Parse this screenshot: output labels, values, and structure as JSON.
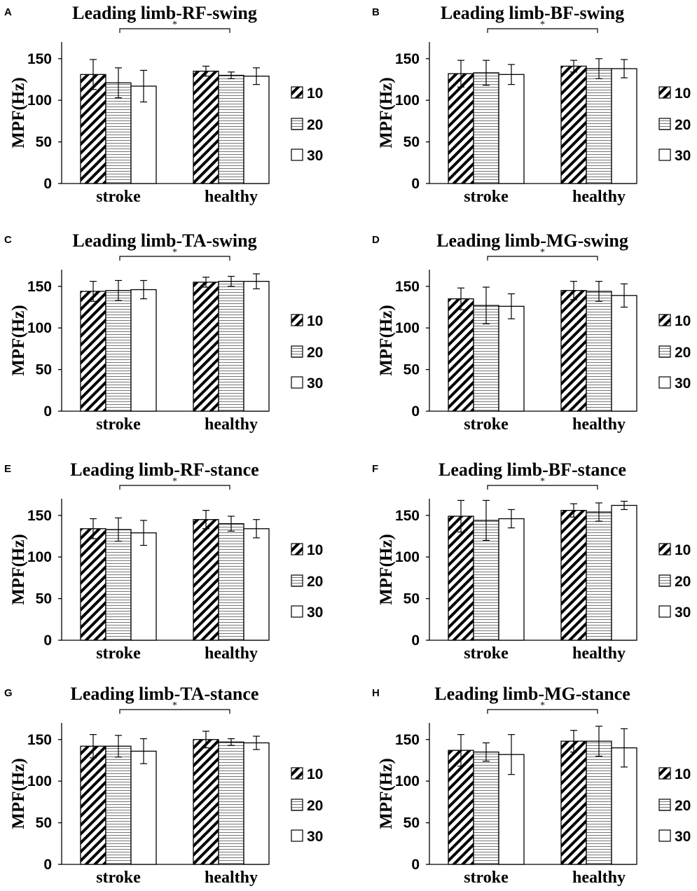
{
  "figure": {
    "legend_pattern_colors": {
      "hatch": "#000000",
      "stripe": "#777777",
      "plain": "#ffffff"
    }
  },
  "chart_data": [
    {
      "letter": "A",
      "type": "bar",
      "title": "Leading limb-RF-swing",
      "ylabel": "MPF(Hz)",
      "xlabel": "",
      "ylim": [
        0,
        170
      ],
      "yticks": [
        0,
        50,
        100,
        150
      ],
      "categories": [
        "stroke",
        "healthy"
      ],
      "series": [
        {
          "name": "10",
          "values": [
            131,
            135
          ],
          "errors": [
            18,
            6
          ]
        },
        {
          "name": "20",
          "values": [
            121,
            130
          ],
          "errors": [
            18,
            4
          ]
        },
        {
          "name": "30",
          "values": [
            117,
            129
          ],
          "errors": [
            19,
            10
          ]
        }
      ],
      "significance": {
        "label": "*",
        "between": [
          "stroke",
          "healthy"
        ]
      }
    },
    {
      "letter": "B",
      "type": "bar",
      "title": "Leading limb-BF-swing",
      "ylabel": "MPF(Hz)",
      "xlabel": "",
      "ylim": [
        0,
        170
      ],
      "yticks": [
        0,
        50,
        100,
        150
      ],
      "categories": [
        "stroke",
        "healthy"
      ],
      "series": [
        {
          "name": "10",
          "values": [
            132,
            141
          ],
          "errors": [
            16,
            7
          ]
        },
        {
          "name": "20",
          "values": [
            133,
            138
          ],
          "errors": [
            15,
            12
          ]
        },
        {
          "name": "30",
          "values": [
            131,
            138
          ],
          "errors": [
            12,
            11
          ]
        }
      ],
      "significance": {
        "label": "*",
        "between": [
          "stroke",
          "healthy"
        ]
      }
    },
    {
      "letter": "C",
      "type": "bar",
      "title": "Leading limb-TA-swing",
      "ylabel": "MPF(Hz)",
      "xlabel": "",
      "ylim": [
        0,
        170
      ],
      "yticks": [
        0,
        50,
        100,
        150
      ],
      "categories": [
        "stroke",
        "healthy"
      ],
      "series": [
        {
          "name": "10",
          "values": [
            144,
            155
          ],
          "errors": [
            12,
            6
          ]
        },
        {
          "name": "20",
          "values": [
            145,
            156
          ],
          "errors": [
            12,
            6
          ]
        },
        {
          "name": "30",
          "values": [
            146,
            156
          ],
          "errors": [
            11,
            9
          ]
        }
      ],
      "significance": {
        "label": "*",
        "between": [
          "stroke",
          "healthy"
        ]
      }
    },
    {
      "letter": "D",
      "type": "bar",
      "title": "Leading limb-MG-swing",
      "ylabel": "MPF(Hz)",
      "xlabel": "",
      "ylim": [
        0,
        170
      ],
      "yticks": [
        0,
        50,
        100,
        150
      ],
      "categories": [
        "stroke",
        "healthy"
      ],
      "series": [
        {
          "name": "10",
          "values": [
            135,
            145
          ],
          "errors": [
            13,
            11
          ]
        },
        {
          "name": "20",
          "values": [
            127,
            144
          ],
          "errors": [
            22,
            12
          ]
        },
        {
          "name": "30",
          "values": [
            126,
            139
          ],
          "errors": [
            15,
            14
          ]
        }
      ],
      "significance": {
        "label": "*",
        "between": [
          "stroke",
          "healthy"
        ]
      }
    },
    {
      "letter": "E",
      "type": "bar",
      "title": "Leading limb-RF-stance",
      "ylabel": "MPF(Hz)",
      "xlabel": "",
      "ylim": [
        0,
        170
      ],
      "yticks": [
        0,
        50,
        100,
        150
      ],
      "categories": [
        "stroke",
        "healthy"
      ],
      "series": [
        {
          "name": "10",
          "values": [
            134,
            145
          ],
          "errors": [
            12,
            11
          ]
        },
        {
          "name": "20",
          "values": [
            133,
            140
          ],
          "errors": [
            14,
            9
          ]
        },
        {
          "name": "30",
          "values": [
            129,
            134
          ],
          "errors": [
            15,
            11
          ]
        }
      ],
      "significance": {
        "label": "*",
        "between": [
          "stroke",
          "healthy"
        ]
      }
    },
    {
      "letter": "F",
      "type": "bar",
      "title": "Leading limb-BF-stance",
      "ylabel": "MPF(Hz)",
      "xlabel": "",
      "ylim": [
        0,
        170
      ],
      "yticks": [
        0,
        50,
        100,
        150
      ],
      "categories": [
        "stroke",
        "healthy"
      ],
      "series": [
        {
          "name": "10",
          "values": [
            149,
            156
          ],
          "errors": [
            19,
            8
          ]
        },
        {
          "name": "20",
          "values": [
            144,
            154
          ],
          "errors": [
            24,
            11
          ]
        },
        {
          "name": "30",
          "values": [
            146,
            162
          ],
          "errors": [
            11,
            5
          ]
        }
      ],
      "significance": {
        "label": "*",
        "between": [
          "stroke",
          "healthy"
        ]
      }
    },
    {
      "letter": "G",
      "type": "bar",
      "title": "Leading limb-TA-stance",
      "ylabel": "MPF(Hz)",
      "xlabel": "",
      "ylim": [
        0,
        170
      ],
      "yticks": [
        0,
        50,
        100,
        150
      ],
      "categories": [
        "stroke",
        "healthy"
      ],
      "series": [
        {
          "name": "10",
          "values": [
            142,
            150
          ],
          "errors": [
            14,
            10
          ]
        },
        {
          "name": "20",
          "values": [
            142,
            147
          ],
          "errors": [
            13,
            4
          ]
        },
        {
          "name": "30",
          "values": [
            136,
            146
          ],
          "errors": [
            15,
            8
          ]
        }
      ],
      "significance": {
        "label": "*",
        "between": [
          "stroke",
          "healthy"
        ]
      }
    },
    {
      "letter": "H",
      "type": "bar",
      "title": "Leading limb-MG-stance",
      "ylabel": "MPF(Hz)",
      "xlabel": "",
      "ylim": [
        0,
        170
      ],
      "yticks": [
        0,
        50,
        100,
        150
      ],
      "categories": [
        "stroke",
        "healthy"
      ],
      "series": [
        {
          "name": "10",
          "values": [
            137,
            148
          ],
          "errors": [
            19,
            13
          ]
        },
        {
          "name": "20",
          "values": [
            135,
            148
          ],
          "errors": [
            11,
            18
          ]
        },
        {
          "name": "30",
          "values": [
            132,
            140
          ],
          "errors": [
            24,
            23
          ]
        }
      ],
      "significance": {
        "label": "*",
        "between": [
          "stroke",
          "healthy"
        ]
      }
    }
  ]
}
